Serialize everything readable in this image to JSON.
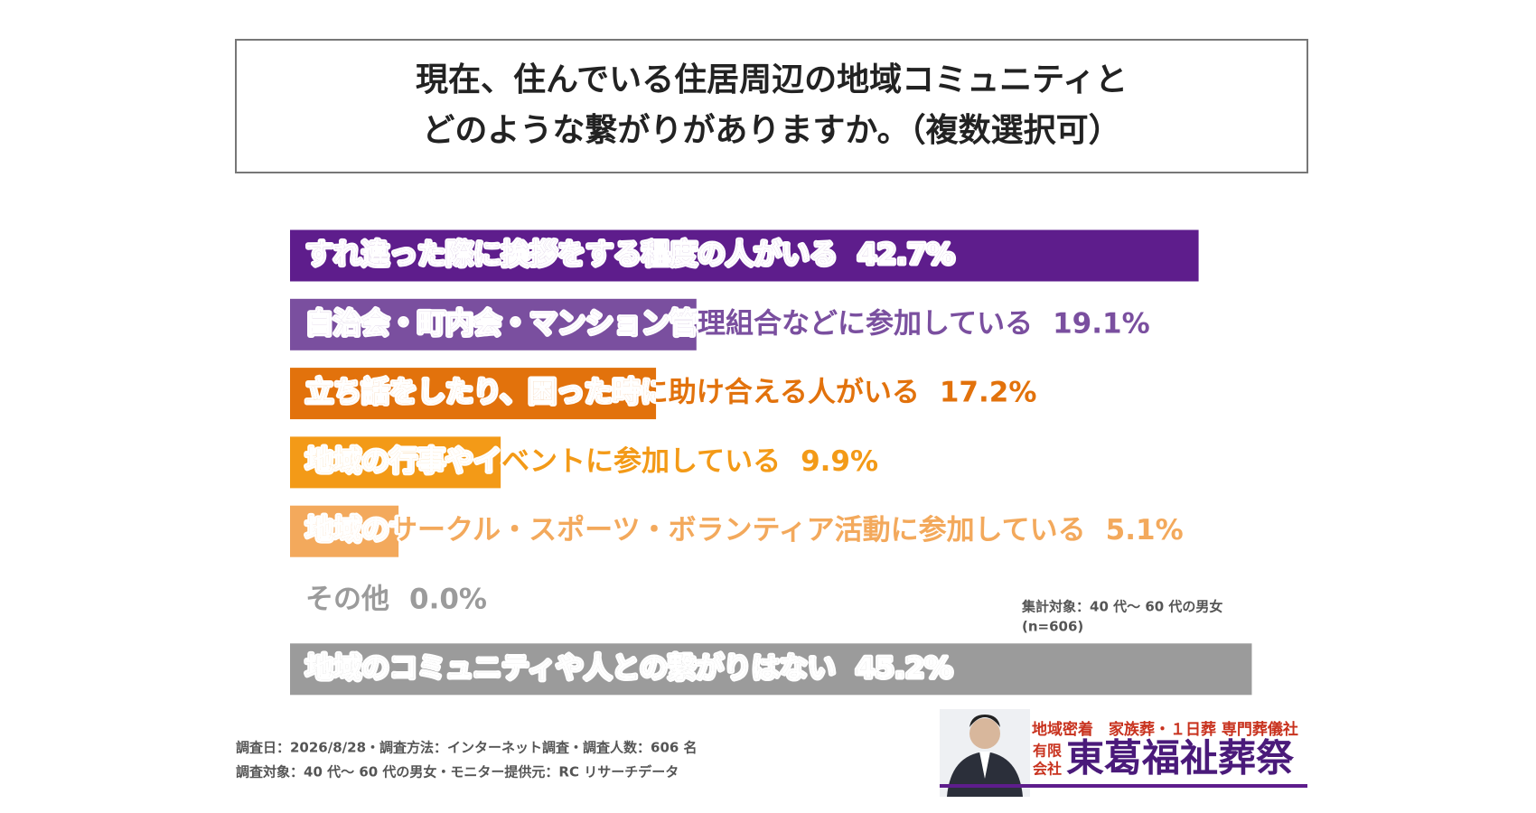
{
  "chart_data": {
    "type": "bar",
    "orientation": "horizontal",
    "title": [
      "現在、住んでいる住居周辺の地域コミュニティと",
      "どのような繋がりがありますか。（複数選択可）"
    ],
    "categories": [
      "すれ違った際に挨拶をする程度の人がいる",
      "自治会・町内会・マンション管理組合などに参加している",
      "立ち話をしたり、困った時に助け合える人がいる",
      "地域の行事やイベントに参加している",
      "地域のサークル・スポーツ・ボランティア活動に参加している",
      "その他",
      "地域のコミュニティや人との繋がりはない"
    ],
    "values": [
      42.7,
      19.1,
      17.2,
      9.9,
      5.1,
      0.0,
      45.2
    ],
    "value_labels": [
      "42.7%",
      "19.1%",
      "17.2%",
      "9.9%",
      "5.1%",
      "0.0%",
      "45.2%"
    ],
    "colors": [
      "#5e1d8c",
      "#7a4f9f",
      "#e2720c",
      "#f39a17",
      "#f3a95c",
      "#9b9b9b",
      "#9b9b9b"
    ]
  },
  "notes": [
    "集計対象：40 代～ 60 代の男女",
    "(n=606)"
  ],
  "footer": [
    "調査日：2026/8/28・調査方法：インターネット調査・調査人数：606 名",
    "調査対象：40 代～ 60 代の男女・モニター提供元：RC リサーチデータ"
  ],
  "logo": {
    "tagline": "地域密着　家族葬・１日葬 専門葬儀社",
    "type_top": "有限",
    "type_bottom": "会社",
    "name": "東葛福祉葬祭"
  }
}
